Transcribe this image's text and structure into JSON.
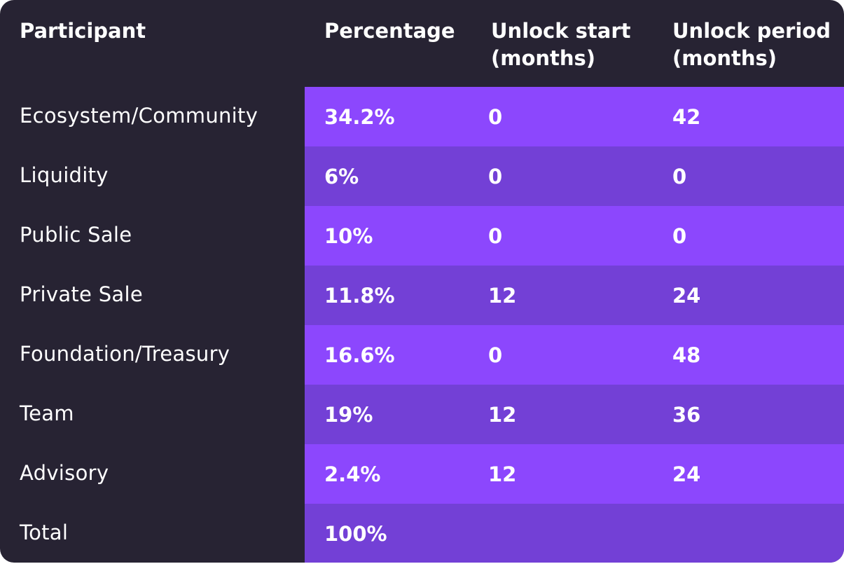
{
  "table": {
    "headers": {
      "participant": "Participant",
      "percentage": "Percentage",
      "unlock_start": "Unlock start\n(months)",
      "unlock_period": "Unlock period\n(months)"
    },
    "rows": [
      {
        "participant": "Ecosystem/Community",
        "percentage": "34.2%",
        "unlock_start": "0",
        "unlock_period": "42"
      },
      {
        "participant": "Liquidity",
        "percentage": "6%",
        "unlock_start": "0",
        "unlock_period": "0"
      },
      {
        "participant": "Public Sale",
        "percentage": "10%",
        "unlock_start": "0",
        "unlock_period": "0"
      },
      {
        "participant": "Private Sale",
        "percentage": "11.8%",
        "unlock_start": "12",
        "unlock_period": "24"
      },
      {
        "participant": "Foundation/Treasury",
        "percentage": "16.6%",
        "unlock_start": "0",
        "unlock_period": "48"
      },
      {
        "participant": "Team",
        "percentage": "19%",
        "unlock_start": "12",
        "unlock_period": "36"
      },
      {
        "participant": "Advisory",
        "percentage": "2.4%",
        "unlock_start": "12",
        "unlock_period": "24"
      },
      {
        "participant": "Total",
        "percentage": "100%",
        "unlock_start": "",
        "unlock_period": ""
      }
    ]
  },
  "colors": {
    "background": "#272333",
    "row_accent_light": "#8c47fd",
    "row_accent_dark": "#7340d6",
    "text": "#ffffff"
  }
}
